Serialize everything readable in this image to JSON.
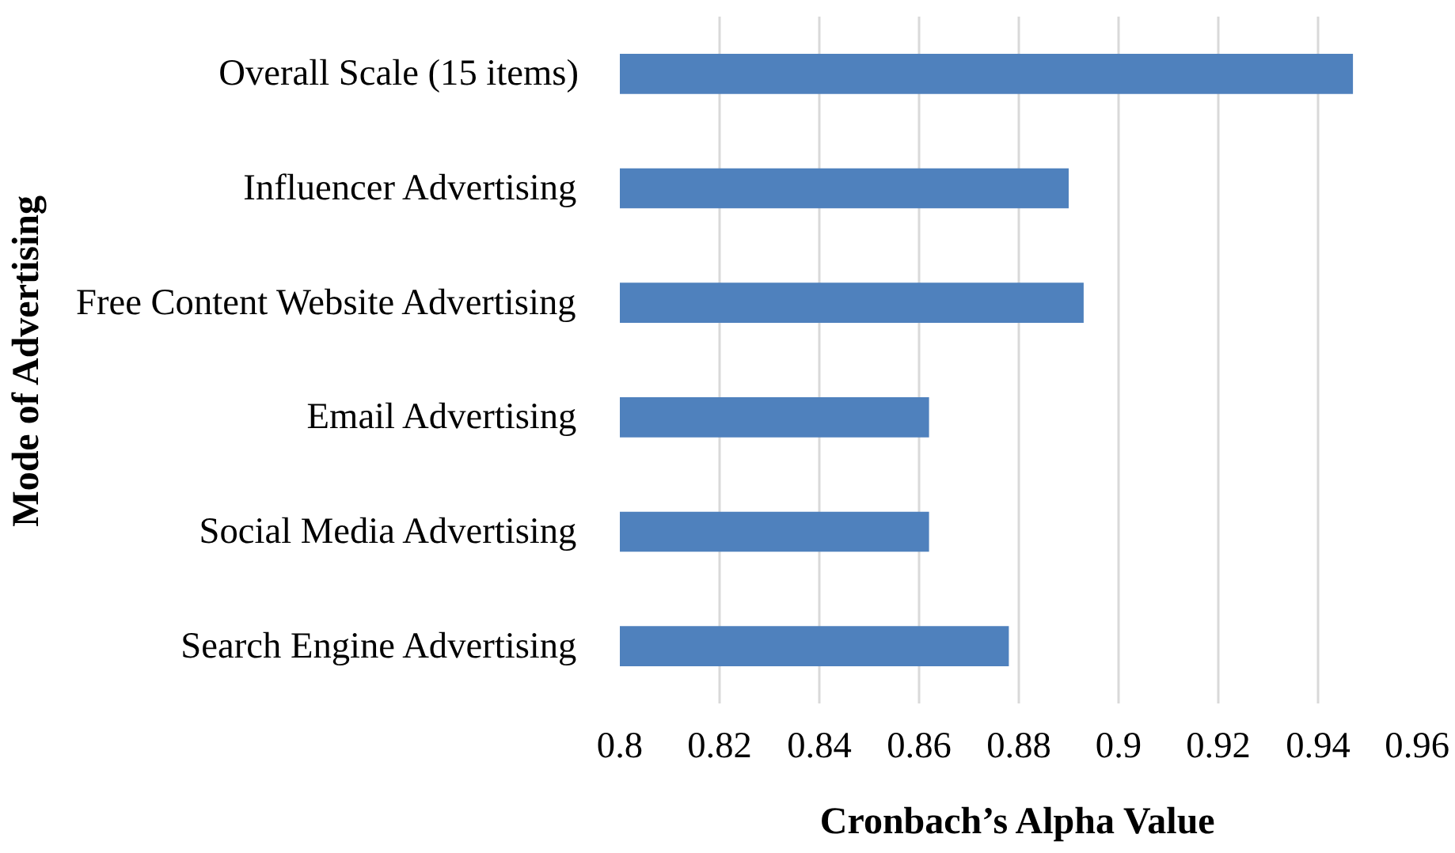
{
  "chart_data": {
    "type": "bar",
    "orientation": "horizontal",
    "xlabel": "Cronbach’s Alpha Value",
    "ylabel": "Mode of Advertising",
    "categories": [
      "Overall Scale (15 items)",
      "Influencer Advertising",
      "Free Content Website Advertising",
      "Email Advertising",
      "Social Media Advertising",
      "Search Engine Advertising"
    ],
    "values": [
      0.947,
      0.89,
      0.893,
      0.862,
      0.862,
      0.878
    ],
    "color": "#4f81bd",
    "xlim": [
      0.8,
      0.96
    ],
    "xticks": [
      0.8,
      0.82,
      0.84,
      0.86,
      0.88,
      0.9,
      0.92,
      0.94,
      0.96
    ],
    "grid": "x"
  }
}
